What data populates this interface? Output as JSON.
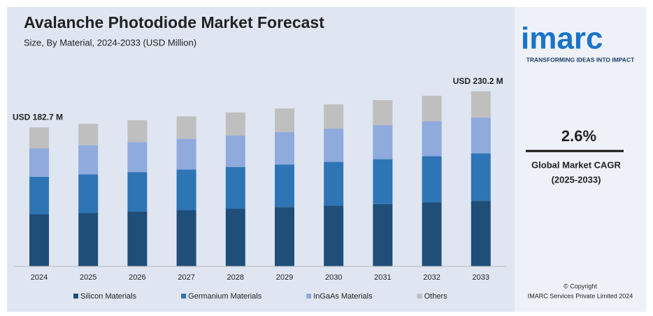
{
  "chart_data": {
    "type": "stacked_bar",
    "title": "Avalanche Photodiode Market Forecast",
    "subtitle": "Size, By Material, 2024-2033 (USD Million)",
    "categories": [
      "2024",
      "2025",
      "2026",
      "2027",
      "2028",
      "2029",
      "2030",
      "2031",
      "2032",
      "2033"
    ],
    "series": [
      {
        "name": "Silicon Materials",
        "color": "#1f4e79",
        "values": [
          68.5,
          70.3,
          72.1,
          74.0,
          75.9,
          77.9,
          79.9,
          82.0,
          84.2,
          86.3
        ]
      },
      {
        "name": "Germanium Materials",
        "color": "#2e75b6",
        "values": [
          49.3,
          50.6,
          51.9,
          53.3,
          54.7,
          56.1,
          57.5,
          59.0,
          60.6,
          62.2
        ]
      },
      {
        "name": "InGaAs Materials",
        "color": "#8faadc",
        "values": [
          37.5,
          38.4,
          39.4,
          40.4,
          41.5,
          42.6,
          43.7,
          44.8,
          46.0,
          47.2
        ]
      },
      {
        "name": "Others",
        "color": "#bfbfbf",
        "values": [
          27.4,
          28.2,
          28.9,
          29.6,
          30.4,
          31.1,
          32.0,
          32.9,
          33.6,
          34.5
        ]
      }
    ],
    "annotations": [
      {
        "text": "USD 182.7 M",
        "category": "2024"
      },
      {
        "text": "USD 230.2 M",
        "category": "2033"
      }
    ],
    "ylim": [
      0,
      240
    ]
  },
  "panel": {
    "logo": "imarc",
    "tagline": "TRANSFORMING IDEAS INTO IMPACT",
    "cagr": "2.6%",
    "cagr_label": "Global Market CAGR",
    "cagr_period": "(2025-2033)",
    "copyright": "© Copyright",
    "company": "IMARC Services Private Limited 2024"
  }
}
